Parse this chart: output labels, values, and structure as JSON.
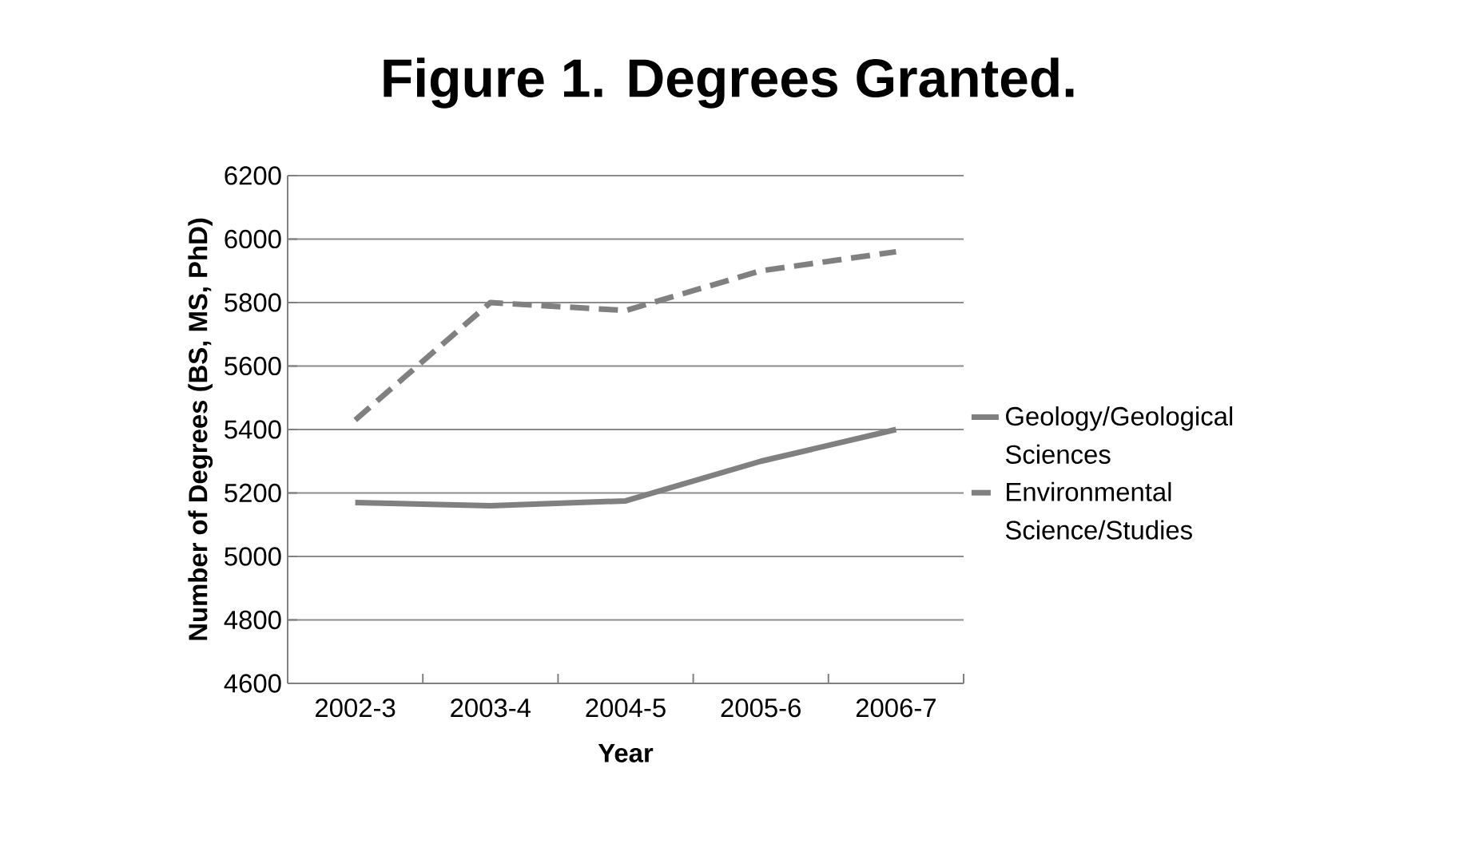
{
  "chart_data": {
    "type": "line",
    "title": "Figure 1.  Degrees Granted.",
    "xlabel": "Year",
    "ylabel": "Number of Degrees (BS, MS, PhD)",
    "categories": [
      "2002-3",
      "2003-4",
      "2004-5",
      "2005-6",
      "2006-7"
    ],
    "series": [
      {
        "name": "Geology/Geological Sciences",
        "color": "#808080",
        "line_style": "solid",
        "values": [
          5170,
          5160,
          5175,
          5300,
          5400
        ]
      },
      {
        "name": "Environmental Science/Studies",
        "color": "#808080",
        "line_style": "dashed",
        "values": [
          5430,
          5800,
          5775,
          5900,
          5960
        ]
      }
    ],
    "ylim": [
      4600,
      6200
    ],
    "yticks": [
      4600,
      4800,
      5000,
      5200,
      5400,
      5600,
      5800,
      6000,
      6200
    ],
    "grid": "y",
    "legend": "right",
    "marker": "none"
  }
}
